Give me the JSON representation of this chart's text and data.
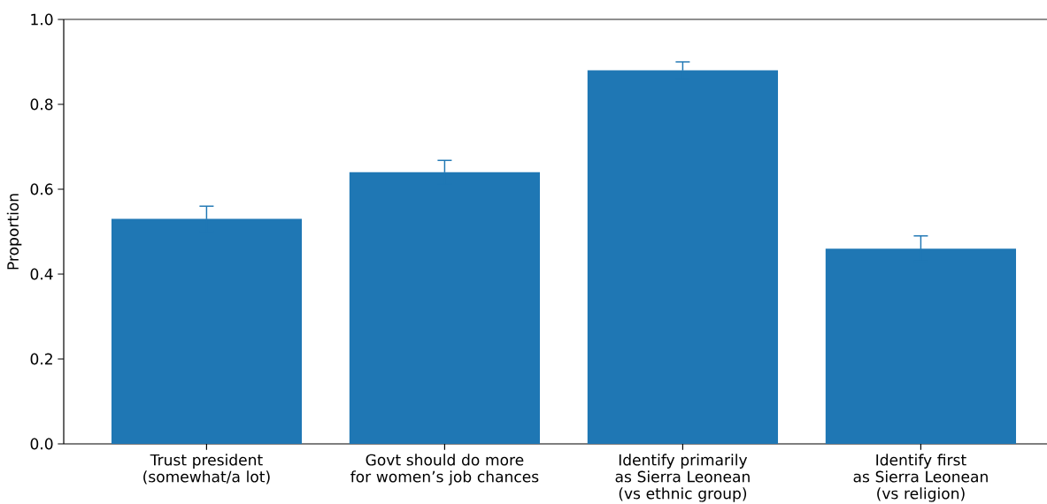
{
  "chart_data": {
    "type": "bar",
    "ylabel": "Proportion",
    "categories": [
      "Trust president\n(somewhat/a lot)",
      "Govt should do more\nfor women’s job chances",
      "Identify primarily\nas Sierra Leonean\n(vs ethnic group)",
      "Identify first\nas Sierra Leonean\n(vs religion)"
    ],
    "values": [
      0.53,
      0.64,
      0.88,
      0.46
    ],
    "errors": [
      0.03,
      0.028,
      0.02,
      0.03
    ],
    "color": "#1f77b4",
    "ylim": [
      0,
      1
    ],
    "yticks": [
      {
        "value": 0,
        "label": "0.0"
      },
      0.2,
      0.4,
      0.6,
      0.8,
      {
        "value": 1,
        "label": "1.0"
      }
    ],
    "grid": false
  }
}
